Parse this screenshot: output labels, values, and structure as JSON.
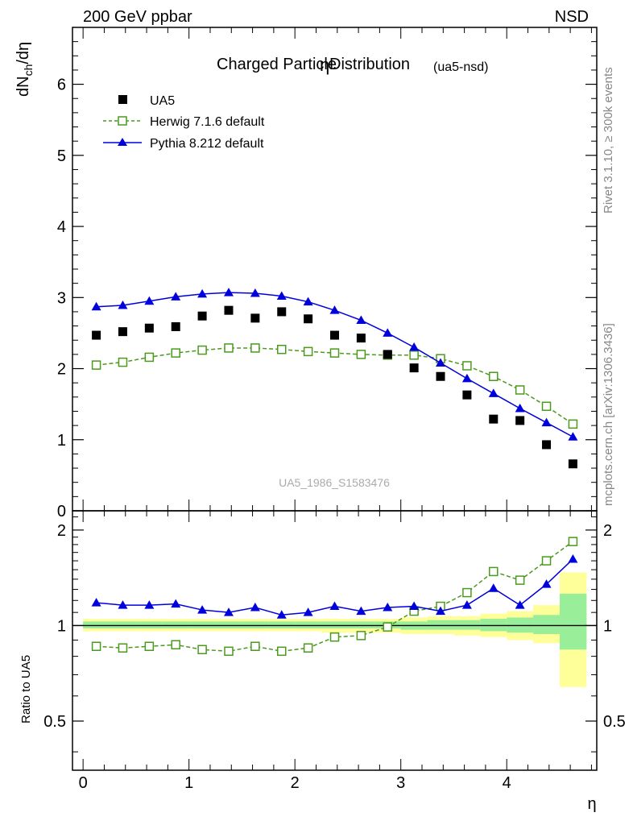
{
  "header": {
    "left": "200 GeV ppbar",
    "right": "NSD"
  },
  "side_text": {
    "rivet": "Rivet 3.1.10, ≥ 300k events",
    "mcplots": "mcplots.cern.ch [arXiv:1306.3436]"
  },
  "chart_data": [
    {
      "type": "scatter",
      "title_main": "Charged Particle",
      "title_eta": "η",
      "title_rest": " Distribution",
      "title_sub": "(ua5-nsd)",
      "ylabel": "dN",
      "ylabel_sub": "ch",
      "ylabel_tail": "/dη",
      "watermark": "UA5_1986_S1583476",
      "ylim": [
        0,
        6.8
      ],
      "xlim": [
        -0.1,
        4.85
      ],
      "yticks": [
        0,
        1,
        2,
        3,
        4,
        5,
        6
      ],
      "ytick_labels": [
        "0",
        "1",
        "2",
        "3",
        "4",
        "5",
        "6"
      ],
      "x": [
        0.125,
        0.375,
        0.625,
        0.875,
        1.125,
        1.375,
        1.625,
        1.875,
        2.125,
        2.375,
        2.625,
        2.875,
        3.125,
        3.375,
        3.625,
        3.875,
        4.125,
        4.375,
        4.625
      ],
      "series": [
        {
          "name": "UA5",
          "values": [
            2.47,
            2.52,
            2.57,
            2.59,
            2.74,
            2.82,
            2.71,
            2.8,
            2.7,
            2.47,
            2.43,
            2.2,
            2.01,
            1.89,
            1.63,
            1.29,
            1.27,
            0.93,
            0.66
          ],
          "color": "#000000",
          "marker": "filled-square"
        },
        {
          "name": "Herwig 7.1.6 default",
          "values": [
            2.05,
            2.09,
            2.16,
            2.22,
            2.26,
            2.29,
            2.29,
            2.27,
            2.24,
            2.22,
            2.2,
            2.19,
            2.19,
            2.14,
            2.04,
            1.89,
            1.7,
            1.47,
            1.22
          ],
          "color": "#4a9a1e",
          "marker": "open-square",
          "dash": true
        },
        {
          "name": "Pythia 8.212 default",
          "values": [
            2.87,
            2.89,
            2.95,
            3.01,
            3.05,
            3.07,
            3.06,
            3.02,
            2.94,
            2.82,
            2.68,
            2.5,
            2.3,
            2.08,
            1.86,
            1.65,
            1.44,
            1.24,
            1.04
          ],
          "color": "#0000dd",
          "marker": "filled-triangle"
        }
      ]
    },
    {
      "type": "line",
      "ylabel": "Ratio to UA5",
      "xlabel": "η",
      "ylim": [
        0.35,
        2.3
      ],
      "xlim": [
        -0.1,
        4.85
      ],
      "yticks": [
        0.5,
        1,
        2
      ],
      "ytick_labels": [
        "0.5",
        "1",
        "2"
      ],
      "xticks": [
        0,
        1,
        2,
        3,
        4
      ],
      "xtick_labels": [
        "0",
        "1",
        "2",
        "3",
        "4"
      ],
      "x": [
        0.125,
        0.375,
        0.625,
        0.875,
        1.125,
        1.375,
        1.625,
        1.875,
        2.125,
        2.375,
        2.625,
        2.875,
        3.125,
        3.375,
        3.625,
        3.875,
        4.125,
        4.375,
        4.625
      ],
      "band_inner": [
        [
          0.98,
          1.03
        ],
        [
          0.98,
          1.03
        ],
        [
          0.98,
          1.03
        ],
        [
          0.98,
          1.03
        ],
        [
          0.98,
          1.03
        ],
        [
          0.98,
          1.03
        ],
        [
          0.98,
          1.03
        ],
        [
          0.98,
          1.03
        ],
        [
          0.98,
          1.03
        ],
        [
          0.98,
          1.03
        ],
        [
          0.98,
          1.03
        ],
        [
          0.98,
          1.03
        ],
        [
          0.97,
          1.03
        ],
        [
          0.97,
          1.04
        ],
        [
          0.97,
          1.04
        ],
        [
          0.96,
          1.05
        ],
        [
          0.95,
          1.06
        ],
        [
          0.94,
          1.08
        ],
        [
          0.84,
          1.26
        ]
      ],
      "band_outer": [
        [
          0.96,
          1.05
        ],
        [
          0.96,
          1.05
        ],
        [
          0.96,
          1.05
        ],
        [
          0.96,
          1.05
        ],
        [
          0.96,
          1.05
        ],
        [
          0.96,
          1.05
        ],
        [
          0.96,
          1.05
        ],
        [
          0.96,
          1.05
        ],
        [
          0.96,
          1.05
        ],
        [
          0.95,
          1.05
        ],
        [
          0.95,
          1.05
        ],
        [
          0.95,
          1.05
        ],
        [
          0.94,
          1.06
        ],
        [
          0.94,
          1.07
        ],
        [
          0.93,
          1.07
        ],
        [
          0.92,
          1.09
        ],
        [
          0.9,
          1.11
        ],
        [
          0.88,
          1.16
        ],
        [
          0.64,
          1.47
        ]
      ],
      "series": [
        {
          "name": "Herwig 7.1.6 default",
          "values": [
            0.86,
            0.85,
            0.86,
            0.87,
            0.84,
            0.83,
            0.86,
            0.83,
            0.85,
            0.92,
            0.93,
            0.99,
            1.11,
            1.15,
            1.27,
            1.48,
            1.39,
            1.6,
            1.84
          ],
          "color": "#4a9a1e",
          "marker": "open-square",
          "dash": true
        },
        {
          "name": "Pythia 8.212 default",
          "values": [
            1.18,
            1.16,
            1.16,
            1.17,
            1.12,
            1.1,
            1.14,
            1.08,
            1.1,
            1.15,
            1.11,
            1.14,
            1.15,
            1.11,
            1.16,
            1.31,
            1.16,
            1.35,
            1.62
          ],
          "color": "#0000dd",
          "marker": "filled-triangle"
        }
      ]
    }
  ]
}
